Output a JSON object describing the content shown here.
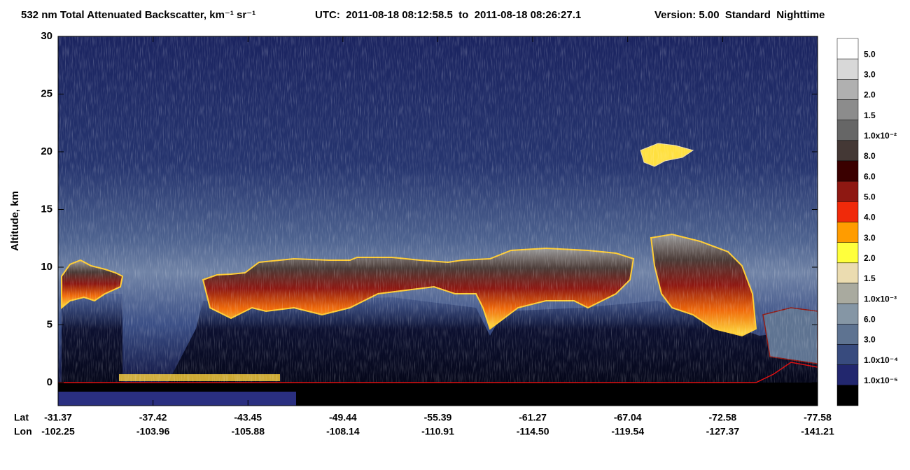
{
  "chart_data": {
    "type": "curtain",
    "title": "532 nm Total Attenuated Backscatter, km⁻¹ sr⁻¹",
    "time_range": "UTC:  2011-08-18 08:12:58.5  to  2011-08-18 08:26:27.1",
    "version": "Version: 5.00  Standard  Nighttime",
    "ylabel": "Altitude, km",
    "ylim": [
      -2,
      30
    ],
    "yticks": [
      0,
      5,
      10,
      15,
      20,
      25,
      30
    ],
    "x_rows": [
      {
        "label": "Lat",
        "ticks": [
          "-31.37",
          "-37.42",
          "-43.45",
          "-49.44",
          "-55.39",
          "-61.27",
          "-67.04",
          "-72.58",
          "-77.58"
        ]
      },
      {
        "label": "Lon",
        "ticks": [
          "-102.25",
          "-103.96",
          "-105.88",
          "-108.14",
          "-110.91",
          "-114.50",
          "-119.54",
          "-127.37",
          "-141.21"
        ]
      }
    ],
    "colorbar": {
      "labels": [
        "5.0",
        "3.0",
        "2.0",
        "1.5",
        "1.0x10⁻²",
        "8.0",
        "6.0",
        "5.0",
        "4.0",
        "3.0",
        "2.0",
        "1.5",
        "1.0x10⁻³",
        "6.0",
        "3.0",
        "1.0x10⁻⁴",
        "1.0x10⁻⁵"
      ],
      "colors": [
        "#ffffff",
        "#d8d8d8",
        "#b0b0b0",
        "#8c8c8c",
        "#666666",
        "#443835",
        "#3a0000",
        "#8e1812",
        "#f02a0a",
        "#ff9c00",
        "#ffff3c",
        "#ebdcb0",
        "#a9aa9f",
        "#8596a5",
        "#5e7391",
        "#384b7e",
        "#22276e",
        "#000000"
      ]
    }
  }
}
